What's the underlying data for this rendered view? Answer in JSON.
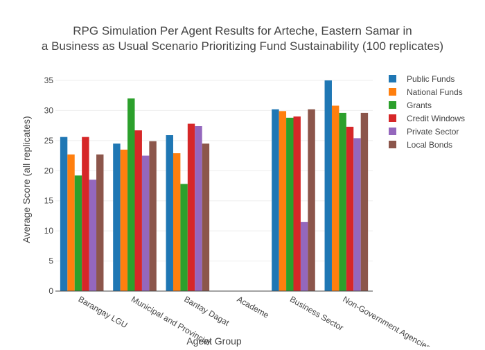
{
  "chart_data": {
    "type": "bar",
    "title_line1": "RPG Simulation Per Agent Results for Arteche, Eastern Samar in",
    "title_line2": "a Business as Usual Scenario Prioritizing Fund Sustainability (100 replicates)",
    "xlabel": "Agent Group",
    "ylabel": "Average Score (all replicates)",
    "ylim": [
      0,
      35
    ],
    "yticks": [
      0,
      5,
      10,
      15,
      20,
      25,
      30,
      35
    ],
    "grid": true,
    "legend_position": "top-right",
    "categories": [
      "Barangay LGU",
      "Municipal and Provincial",
      "Bantay Dagat",
      "Academe",
      "Business Sector",
      "Non-Government Agencies"
    ],
    "series": [
      {
        "name": "Public Funds",
        "color": "#1f77b4",
        "values": [
          25.6,
          24.5,
          25.9,
          0,
          30.2,
          35.0
        ]
      },
      {
        "name": "National Funds",
        "color": "#ff7f0e",
        "values": [
          22.7,
          23.5,
          22.9,
          0,
          29.9,
          30.8
        ]
      },
      {
        "name": "Grants",
        "color": "#2ca02c",
        "values": [
          19.2,
          32.0,
          17.8,
          0,
          28.8,
          29.6
        ]
      },
      {
        "name": "Credit Windows",
        "color": "#d62728",
        "values": [
          25.6,
          26.7,
          27.8,
          0,
          29.0,
          27.3
        ]
      },
      {
        "name": "Private Sector",
        "color": "#9467bd",
        "values": [
          18.5,
          22.5,
          27.4,
          0,
          11.5,
          25.4
        ]
      },
      {
        "name": "Local Bonds",
        "color": "#8c564b",
        "values": [
          22.7,
          24.9,
          24.5,
          0,
          30.2,
          29.6
        ]
      }
    ]
  }
}
